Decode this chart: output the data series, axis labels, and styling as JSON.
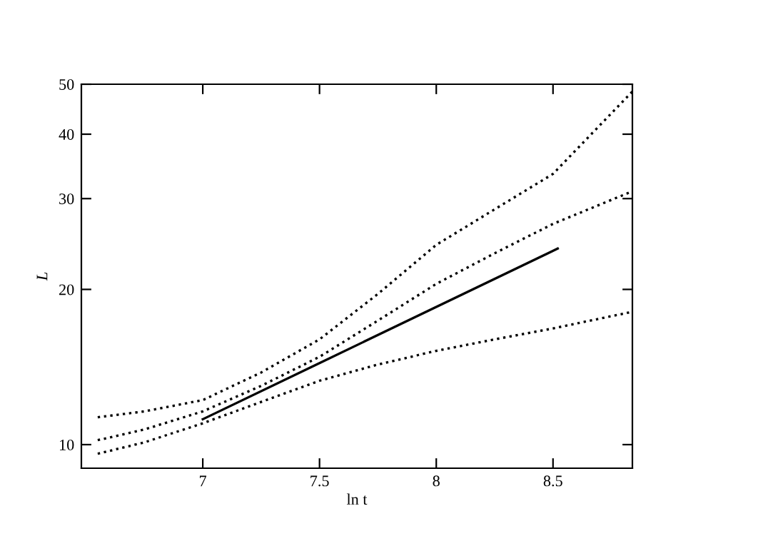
{
  "chart_data": {
    "type": "line",
    "xlabel": "ln t",
    "ylabel": "L",
    "log": "y",
    "xlim": [
      6.48,
      8.84
    ],
    "ylim": [
      9,
      50
    ],
    "xticks": [
      7,
      7.5,
      8,
      8.5
    ],
    "yticks": [
      10,
      20,
      30,
      40,
      50
    ],
    "grid": false,
    "legend": false,
    "series": [
      {
        "color": "#000000",
        "line_style": "dotted",
        "x": [
          6.55,
          6.75,
          7,
          7.25,
          7.5,
          7.75,
          8,
          8.25,
          8.5,
          8.84
        ],
        "values": [
          11.3,
          11.6,
          12.2,
          13.8,
          16.0,
          19.6,
          24.4,
          28.6,
          33.5,
          48.4
        ]
      },
      {
        "color": "#000000",
        "line_style": "dotted",
        "x": [
          6.55,
          6.75,
          7,
          7.25,
          7.5,
          7.75,
          8,
          8.25,
          8.5,
          8.84
        ],
        "values": [
          10.2,
          10.7,
          11.6,
          13.0,
          14.8,
          17.4,
          20.5,
          23.5,
          26.8,
          31
        ]
      },
      {
        "color": "#000000",
        "line_style": "dotted",
        "x": [
          6.55,
          6.75,
          7,
          7.25,
          7.5,
          7.75,
          8,
          8.25,
          8.5,
          8.84
        ],
        "values": [
          9.6,
          10.1,
          11.0,
          12.1,
          13.3,
          14.3,
          15.2,
          16.0,
          16.8,
          18.1
        ]
      },
      {
        "color": "#000000",
        "line_style": "solid",
        "x": [
          7.0,
          8.52
        ],
        "values": [
          11.2,
          24.0
        ]
      }
    ]
  }
}
